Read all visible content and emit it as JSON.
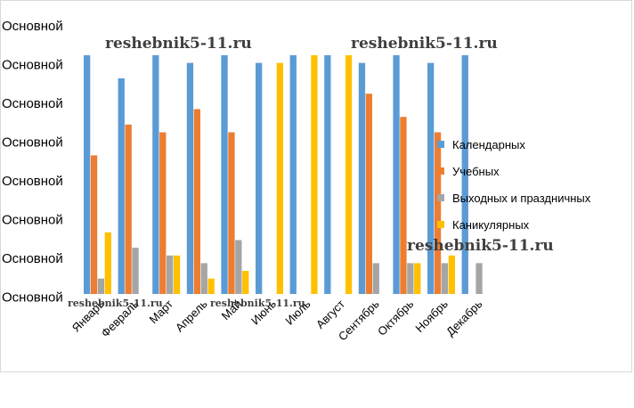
{
  "chart_data": {
    "type": "bar",
    "y_tick_labels": [
      "Основной",
      "Основной",
      "Основной",
      "Основной",
      "Основной",
      "Основной",
      "Основной",
      "Основной"
    ],
    "categories": [
      "Январь",
      "Февраль",
      "Март",
      "Апрель",
      "Май",
      "Июнь",
      "Июль",
      "Август",
      "Сентябрь",
      "Октябрь",
      "Ноябрь",
      "Декабрь"
    ],
    "ylim": [
      0,
      31
    ],
    "grid": false,
    "legend_position": "right",
    "series": [
      {
        "name": "Календарных",
        "color": "#5b9bd5",
        "values": [
          31,
          28,
          31,
          30,
          31,
          30,
          31,
          31,
          30,
          31,
          30,
          31
        ]
      },
      {
        "name": "Учебных",
        "color": "#ed7d31",
        "values": [
          18,
          22,
          21,
          24,
          21,
          0,
          0,
          0,
          26,
          23,
          21,
          0
        ]
      },
      {
        "name": "Выходных и праздничных",
        "color": "#a5a5a5",
        "values": [
          2,
          6,
          5,
          4,
          7,
          0,
          0,
          0,
          4,
          4,
          4,
          4
        ]
      },
      {
        "name": "Каникулярных",
        "color": "#ffc000",
        "values": [
          8,
          0,
          5,
          2,
          3,
          30,
          31,
          31,
          0,
          4,
          5,
          0
        ]
      }
    ]
  },
  "watermarks": [
    "reshebnik5-11.ru",
    "reshebnik5-11.ru",
    "reshebnik5-11.ru",
    "reshebnik5-11.ru",
    "reshebnik5-11.ru"
  ]
}
